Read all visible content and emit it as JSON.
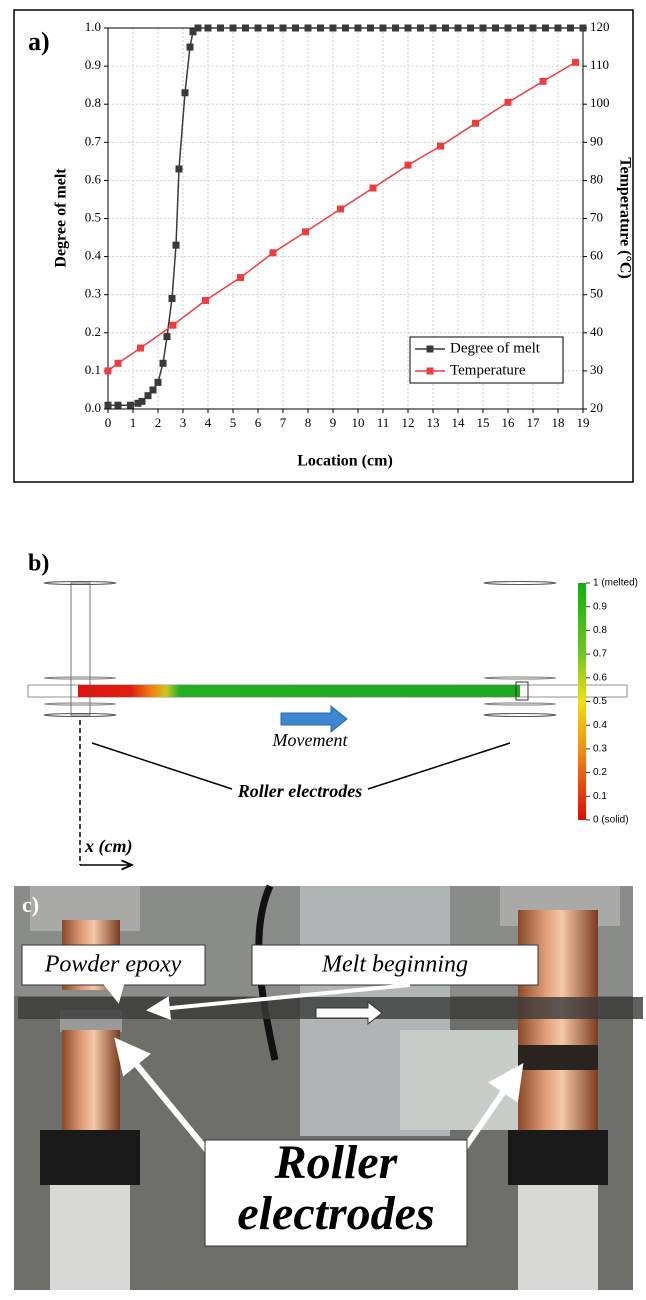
{
  "chart_data": {
    "type": "line",
    "panel_label": "a)",
    "xlabel": "Location (cm)",
    "ylabel": "Degree of melt",
    "y2label": "Temperature (°C)",
    "xlim": [
      0,
      19
    ],
    "xticks": [
      0,
      1,
      2,
      3,
      4,
      5,
      6,
      7,
      8,
      9,
      10,
      11,
      12,
      13,
      14,
      15,
      16,
      17,
      18,
      19
    ],
    "ylim": [
      0,
      1
    ],
    "yticks": [
      {
        "value": 0,
        "label": "0.0"
      },
      0.1,
      0.2,
      0.3,
      0.4,
      0.5,
      0.6,
      0.7,
      0.8,
      0.9,
      {
        "value": 1,
        "label": "1.0"
      }
    ],
    "y2lim": [
      20,
      120
    ],
    "y2ticks": [
      20,
      30,
      40,
      50,
      60,
      70,
      80,
      90,
      100,
      110,
      120
    ],
    "grid": true,
    "legend": "lower right",
    "series": [
      {
        "name": "Degree of melt",
        "color": "#3a3a3a",
        "x": [
          0,
          0.4,
          0.9,
          1.2,
          1.36,
          1.6,
          1.8,
          2.0,
          2.2,
          2.36,
          2.56,
          2.72,
          2.84,
          3.08,
          3.28,
          3.4,
          3.6,
          4,
          4.5,
          5,
          5.5,
          6,
          6.5,
          7,
          7.5,
          8,
          8.5,
          9,
          9.5,
          10,
          10.5,
          11,
          11.5,
          12,
          12.5,
          13,
          13.5,
          14,
          14.5,
          15,
          15.5,
          16,
          16.5,
          17,
          17.5,
          18,
          18.5,
          19
        ],
        "values": [
          0.01,
          0.01,
          0.01,
          0.015,
          0.02,
          0.035,
          0.05,
          0.07,
          0.12,
          0.19,
          0.29,
          0.43,
          0.63,
          0.83,
          0.95,
          0.99,
          1,
          1,
          1,
          1,
          1,
          1,
          1,
          1,
          1,
          1,
          1,
          1,
          1,
          1,
          1,
          1,
          1,
          1,
          1,
          1,
          1,
          1,
          1,
          1,
          1,
          1,
          1,
          1,
          1,
          1,
          1,
          1
        ]
      },
      {
        "name": "Temperature",
        "color": "#f03c3c",
        "axis": "y2",
        "x": [
          0,
          0.4,
          1.3,
          2.6,
          3.9,
          5.3,
          6.6,
          7.9,
          9.3,
          10.6,
          12.0,
          13.3,
          14.7,
          16.0,
          17.4,
          18.7
        ],
        "values": [
          30,
          32,
          36,
          42,
          48.5,
          54.5,
          61,
          66.5,
          72.5,
          78,
          84,
          89,
          95,
          100.5,
          106,
          111
        ]
      }
    ]
  },
  "panel_b": {
    "panel_label": "b)",
    "movement": "Movement",
    "electrodes": "Roller electrodes",
    "axis": "x (cm)",
    "colorbar": {
      "ticks": [
        {
          "value": 0,
          "label": "0 (solid)"
        },
        0.1,
        0.2,
        0.3,
        0.4,
        0.5,
        0.6,
        0.7,
        0.8,
        0.9,
        {
          "value": 1,
          "label": "1 (melted)"
        }
      ]
    }
  },
  "panel_c": {
    "panel_label": "c)",
    "powder": "Powder epoxy",
    "melt": "Melt beginning",
    "electrodes": [
      "Roller",
      "electrodes"
    ]
  }
}
